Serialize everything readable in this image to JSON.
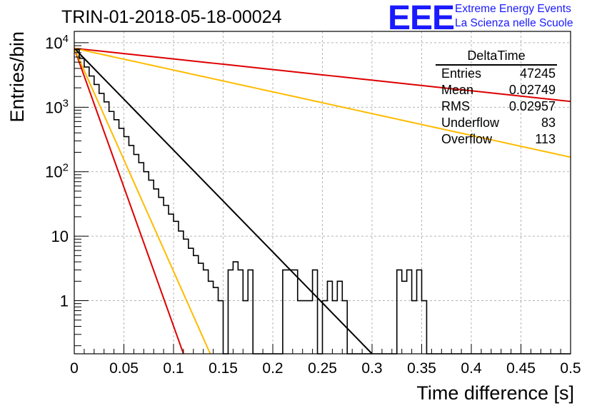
{
  "header": {
    "title": "TRIN-01-2018-05-18-00024",
    "logo_text": "EEE",
    "logo_line1": "Extreme Energy Events",
    "logo_line2": "La Scienza nelle Scuole"
  },
  "stats": {
    "title": "DeltaTime",
    "rows": [
      {
        "key": "Entries",
        "value": "47245"
      },
      {
        "key": "Mean",
        "value": "0.02749"
      },
      {
        "key": "RMS",
        "value": "0.02957"
      },
      {
        "key": "Underflow",
        "value": "83"
      },
      {
        "key": "Overflow",
        "value": "113"
      }
    ]
  },
  "chart_data": {
    "type": "line",
    "xlabel": "Time difference [s]",
    "ylabel": "Entries/bin",
    "xlim": [
      0,
      0.5
    ],
    "ylim": [
      0.15,
      15000
    ],
    "yscale": "log",
    "grid": true,
    "x_ticks": [
      "0",
      "0.05",
      "0.1",
      "0.15",
      "0.2",
      "0.25",
      "0.3",
      "0.35",
      "0.4",
      "0.45",
      "0.5"
    ],
    "y_ticks": [
      {
        "value": 10000,
        "label": "10^4"
      },
      {
        "value": 1000,
        "label": "10^3"
      },
      {
        "value": 100,
        "label": "10^2"
      },
      {
        "value": 10,
        "label": "10"
      },
      {
        "value": 1,
        "label": "1"
      }
    ],
    "histogram": {
      "color": "#000000",
      "bin_width": 0.005,
      "x_start": 0,
      "values": [
        7800,
        5700,
        4200,
        3050,
        2250,
        1640,
        1210,
        860,
        640,
        470,
        350,
        255,
        185,
        138,
        100,
        74,
        54,
        40,
        30,
        22,
        17,
        12,
        9,
        6.5,
        5,
        3.8,
        3,
        2,
        1.6,
        1,
        0,
        3,
        4,
        3,
        1,
        3,
        0,
        0,
        0,
        0,
        0,
        0,
        3,
        3,
        3,
        1,
        1,
        1,
        3,
        0,
        1,
        2,
        1,
        2,
        1,
        0,
        0,
        0,
        0,
        0,
        0,
        0,
        0,
        0,
        0,
        3,
        2,
        3,
        1,
        3,
        1,
        0,
        0,
        0,
        0,
        0,
        0,
        0,
        0,
        0,
        0,
        0,
        0,
        0,
        0,
        0,
        0,
        0,
        0,
        0,
        0,
        0,
        0,
        0,
        0,
        0,
        0,
        0,
        0,
        0
      ]
    },
    "series": [
      {
        "color": "#000000",
        "x": [
          0,
          0.3
        ],
        "y": [
          8200,
          0.15
        ]
      },
      {
        "color": "#dd0000",
        "x": [
          0,
          0.5
        ],
        "y": [
          8200,
          1230
        ]
      },
      {
        "color": "#ffbb00",
        "x": [
          0,
          0.5
        ],
        "y": [
          8200,
          168
        ]
      },
      {
        "color": "#dd0000",
        "x": [
          0,
          0.11
        ],
        "y": [
          8200,
          0.15
        ]
      },
      {
        "color": "#ffbb00",
        "x": [
          0,
          0.137
        ],
        "y": [
          8200,
          0.15
        ]
      }
    ]
  }
}
